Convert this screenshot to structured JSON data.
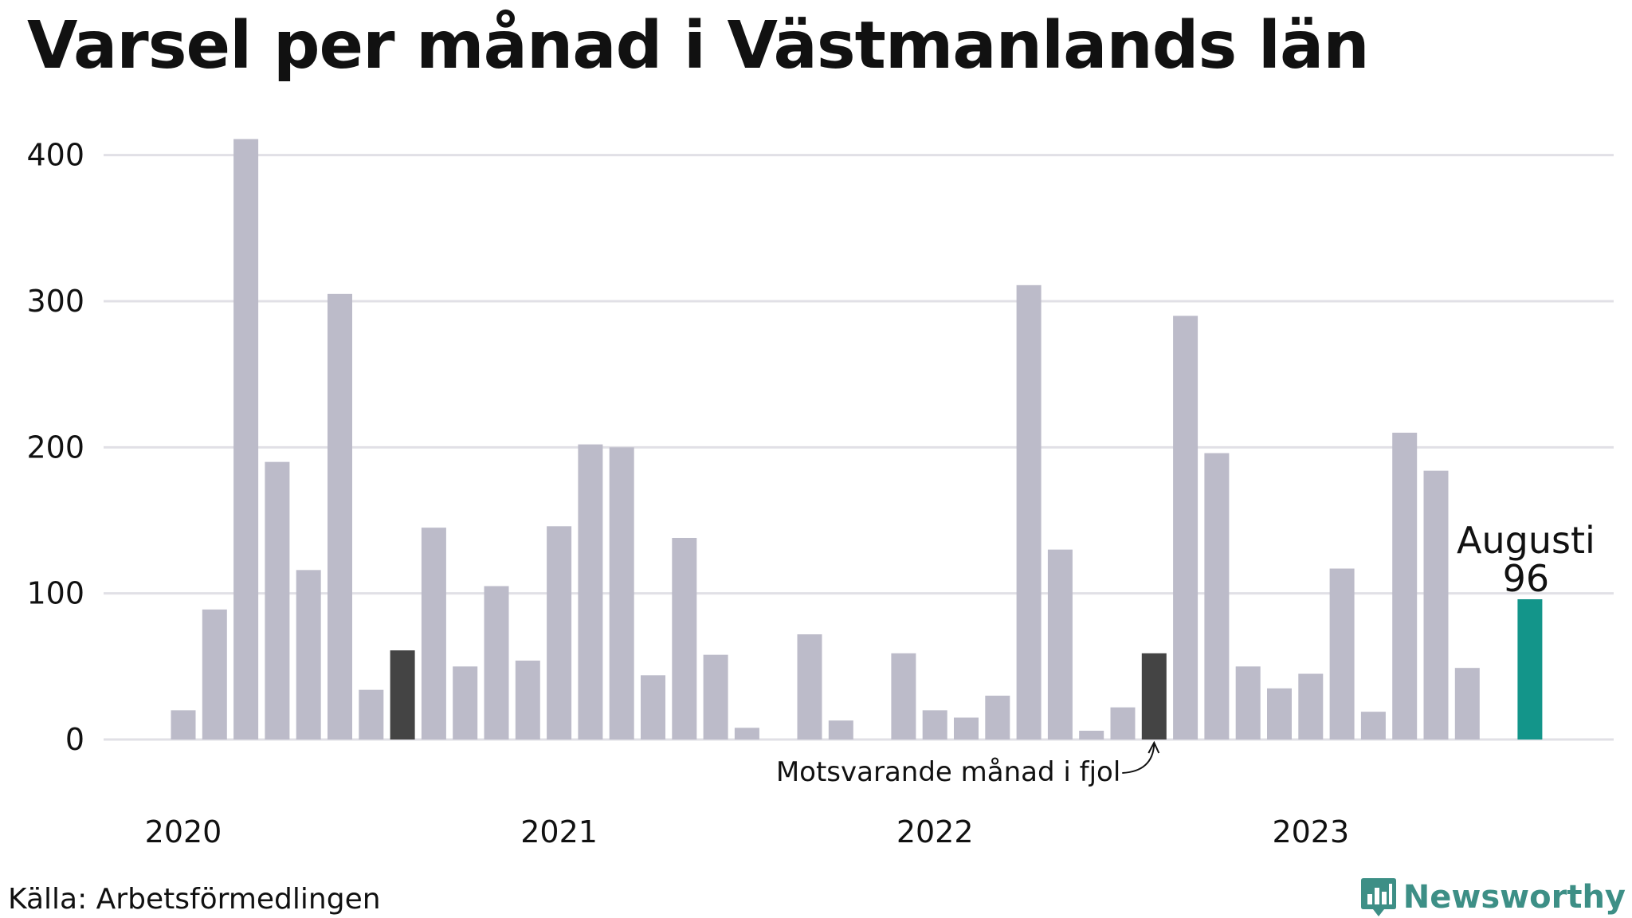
{
  "chart_data": {
    "type": "bar",
    "title": "Varsel per månad i Västmanlands län",
    "xlabel": "",
    "ylabel": "",
    "ylim": [
      0,
      420
    ],
    "yticks": [
      0,
      100,
      200,
      300,
      400
    ],
    "year_labels": [
      {
        "label": "2020",
        "index": 0
      },
      {
        "label": "2021",
        "index": 12
      },
      {
        "label": "2022",
        "index": 24
      },
      {
        "label": "2023",
        "index": 36
      }
    ],
    "categories": [
      "2020-01",
      "2020-02",
      "2020-03",
      "2020-04",
      "2020-05",
      "2020-06",
      "2020-07",
      "2020-08",
      "2020-09",
      "2020-10",
      "2020-11",
      "2020-12",
      "2021-01",
      "2021-02",
      "2021-03",
      "2021-04",
      "2021-05",
      "2021-06",
      "2021-07",
      "2021-08",
      "2021-09",
      "2021-10",
      "2021-11",
      "2021-12",
      "2022-01",
      "2022-02",
      "2022-03",
      "2022-04",
      "2022-05",
      "2022-06",
      "2022-07",
      "2022-08",
      "2022-09",
      "2022-10",
      "2022-11",
      "2022-12",
      "2023-01",
      "2023-02",
      "2023-03",
      "2023-04",
      "2023-05",
      "2023-06",
      "2023-07",
      "2023-08"
    ],
    "values": [
      20,
      89,
      411,
      190,
      116,
      305,
      34,
      61,
      145,
      50,
      105,
      54,
      146,
      202,
      200,
      44,
      138,
      58,
      8,
      0,
      72,
      13,
      0,
      59,
      20,
      15,
      30,
      311,
      130,
      6,
      22,
      59,
      290,
      196,
      50,
      35,
      45,
      117,
      19,
      210,
      184,
      49,
      0,
      96
    ],
    "highlight": {
      "index": 43,
      "label": "Augusti",
      "value_label": "96",
      "color": "#13958a"
    },
    "comparison": {
      "indices": [
        7,
        31
      ],
      "color": "#444444",
      "annotation": "Motsvarande månad i fjol"
    },
    "bar_color": "#bcbbc9",
    "grid": true,
    "gridline_color": "#e1e0e6"
  },
  "footer": {
    "source": "Källa: Arbetsförmedlingen",
    "brand": "Newsworthy",
    "brand_color": "#3d8f86"
  }
}
